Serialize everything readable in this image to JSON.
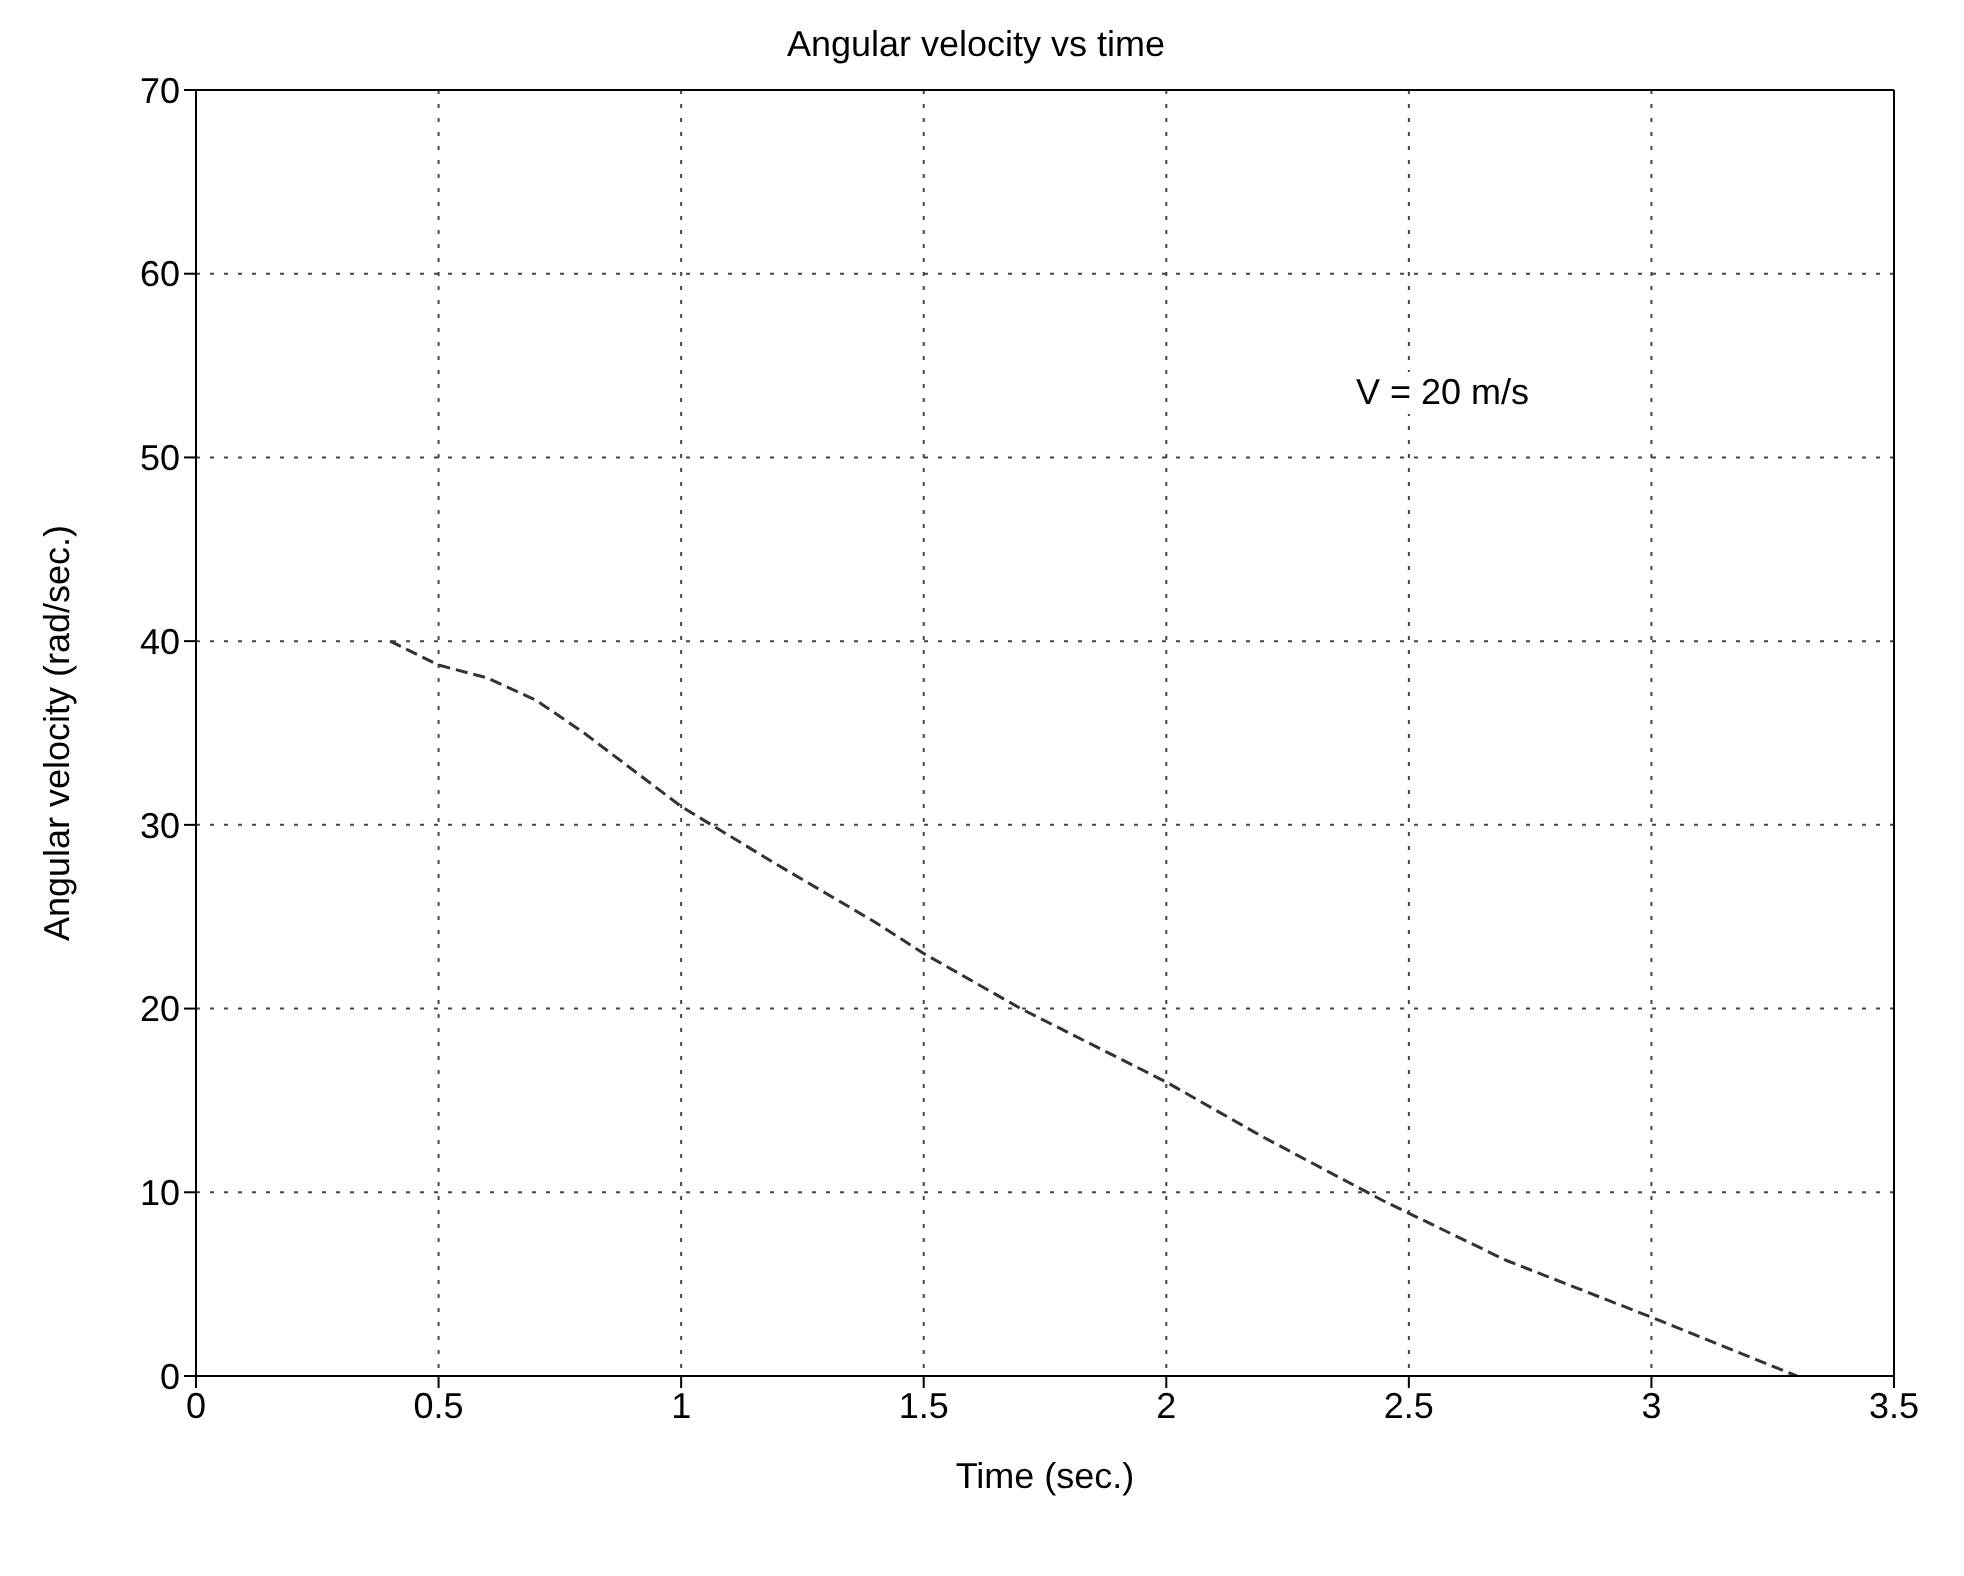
{
  "chart_data": {
    "type": "line",
    "title": "Angular velocity vs time",
    "xlabel": "Time  (sec.)",
    "ylabel": "Angular velocity  (rad/sec.)",
    "annotations": [
      "V = 20 m/s"
    ],
    "x": [
      0.4,
      0.5,
      0.6,
      0.7,
      0.8,
      0.9,
      1.0,
      1.2,
      1.4,
      1.5,
      1.7,
      2.0,
      2.2,
      2.45,
      2.7,
      3.0,
      3.15,
      3.3
    ],
    "series": [
      {
        "color": "#333333",
        "values": [
          40,
          38.7,
          38,
          36.8,
          35,
          33,
          31,
          27.8,
          24.7,
          23,
          20,
          16,
          13,
          9.5,
          6.3,
          3.2,
          1.6,
          0
        ]
      }
    ],
    "xlim": [
      0,
      3.5
    ],
    "xticks": [
      0,
      0.5,
      1,
      1.5,
      2,
      2.5,
      3,
      3.5
    ],
    "ylim": [
      0,
      70
    ],
    "yticks": [
      0,
      10,
      20,
      30,
      40,
      50,
      60,
      70
    ],
    "grid": true,
    "line_style": "dashed",
    "marker": "none"
  }
}
